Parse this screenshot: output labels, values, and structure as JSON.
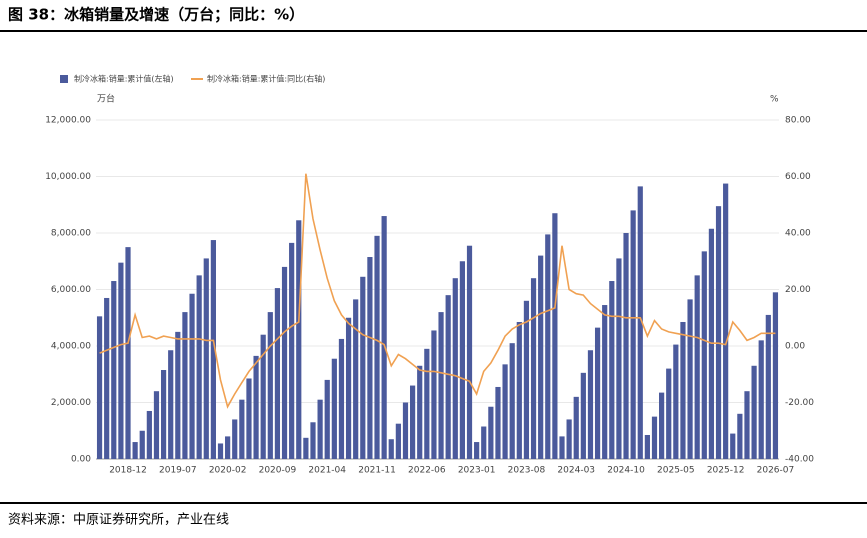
{
  "chart_data": {
    "type": "bar_line",
    "title": "图 38：冰箱销量及增速（万台；同比：%）",
    "source": "资料来源：中原证券研究所，产业在线",
    "ylabel": "万台",
    "y2label": "%",
    "categories": [
      null,
      null,
      null,
      null,
      "2018-12",
      null,
      null,
      null,
      null,
      null,
      null,
      "2019-07",
      null,
      null,
      null,
      null,
      null,
      null,
      "2020-02",
      null,
      null,
      null,
      null,
      null,
      null,
      "2020-09",
      null,
      null,
      null,
      null,
      null,
      null,
      "2021-04",
      null,
      null,
      null,
      null,
      null,
      null,
      "2021-11",
      null,
      null,
      null,
      null,
      null,
      null,
      "2022-06",
      null,
      null,
      null,
      null,
      null,
      null,
      "2023-01",
      null,
      null,
      null,
      null,
      null,
      null,
      "2023-08",
      null,
      null,
      null,
      null,
      null,
      null,
      "2024-03",
      null,
      null,
      null,
      null,
      null,
      null,
      "2024-10",
      null,
      null,
      null,
      null,
      null,
      null,
      "2025-05",
      null,
      null,
      null,
      null,
      null,
      null,
      "2025-12",
      null,
      null,
      null,
      null,
      null,
      null,
      "2026-07"
    ],
    "series": [
      {
        "name": "制冷冰箱:销量:累计值(左轴)",
        "color": "#4b5a9c",
        "values": [
          5050,
          5700,
          6300,
          6950,
          7500,
          600,
          1000,
          1700,
          2400,
          3150,
          3850,
          4500,
          5200,
          5850,
          6500,
          7100,
          7750,
          550,
          800,
          1400,
          2100,
          2850,
          3650,
          4400,
          5200,
          6050,
          6800,
          7650,
          8450,
          750,
          1300,
          2100,
          2800,
          3550,
          4250,
          5000,
          5650,
          6450,
          7150,
          7900,
          8600,
          700,
          1250,
          2000,
          2600,
          3300,
          3900,
          4550,
          5200,
          5800,
          6400,
          7000,
          7550,
          600,
          1150,
          1850,
          2550,
          3350,
          4100,
          4850,
          5600,
          6400,
          7200,
          7950,
          8700,
          800,
          1400,
          2200,
          3050,
          3850,
          4650,
          5450,
          6300,
          7100,
          8000,
          8800,
          9650,
          850,
          1500,
          2350,
          3200,
          4050,
          4850,
          5650,
          6500,
          7350,
          8150,
          8950,
          9750,
          900,
          1600,
          2400,
          3300,
          4200,
          5100,
          5900
        ]
      },
      {
        "name": "制冷冰箱:销量:累计值:同比(右轴)",
        "color": "#f0a152",
        "axis": "y2",
        "values": [
          -2.5,
          -1.5,
          -0.5,
          0.5,
          1,
          11,
          3,
          3.5,
          2.5,
          3.5,
          3,
          2.5,
          2.5,
          2.5,
          2.5,
          2,
          2,
          -12,
          -21.5,
          -17,
          -13,
          -9,
          -6,
          -3,
          0,
          2.5,
          5,
          7,
          8.5,
          61,
          45,
          34,
          24,
          16,
          11,
          8,
          6,
          4,
          3,
          2,
          0.5,
          -7,
          -3,
          -4.5,
          -6.5,
          -8.5,
          -9,
          -9,
          -9.5,
          -10,
          -10.5,
          -11.5,
          -12.5,
          -17,
          -9,
          -6,
          -1.5,
          3.5,
          6,
          7.5,
          8.5,
          10,
          11.5,
          12.5,
          13.5,
          35.5,
          20,
          18.5,
          18,
          15,
          13,
          11,
          10.5,
          10.5,
          10,
          10,
          10,
          3.5,
          9,
          6,
          5,
          4.5,
          4,
          3.5,
          3,
          2,
          1,
          1,
          0.5,
          8.5,
          5.5,
          2,
          3,
          4.5,
          4.5,
          4.5
        ]
      }
    ],
    "ylim": [
      0,
      12000
    ],
    "yticks": [
      {
        "value": 0,
        "label": "0.00"
      },
      {
        "value": 2000,
        "label": "2,000.00"
      },
      {
        "value": 4000,
        "label": "4,000.00"
      },
      {
        "value": 6000,
        "label": "6,000.00"
      },
      {
        "value": 8000,
        "label": "8,000.00"
      },
      {
        "value": 10000,
        "label": "10,000.00"
      },
      {
        "value": 12000,
        "label": "12,000.00"
      }
    ],
    "y2lim": [
      -40,
      80
    ],
    "y2ticks": [
      {
        "value": -40,
        "label": "-40.00"
      },
      {
        "value": -20,
        "label": "-20.00"
      },
      {
        "value": 0,
        "label": "0.00"
      },
      {
        "value": 20,
        "label": "20.00"
      },
      {
        "value": 40,
        "label": "40.00"
      },
      {
        "value": 60,
        "label": "60.00"
      },
      {
        "value": 80,
        "label": "80.00"
      }
    ],
    "grid": true
  }
}
